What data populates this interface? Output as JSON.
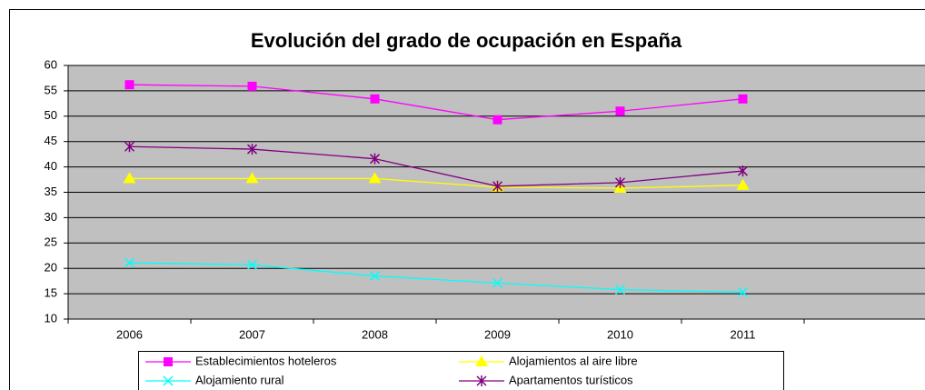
{
  "chart_data": {
    "type": "line",
    "title": "Evolución del grado de ocupación en España",
    "categories": [
      "2006",
      "2007",
      "2008",
      "2009",
      "2010",
      "2011",
      null
    ],
    "series": [
      {
        "name": "Establecimientos hoteleros",
        "color": "#ff00ff",
        "marker": "square",
        "values": [
          56.2,
          55.9,
          53.4,
          49.3,
          51,
          53.4,
          null
        ]
      },
      {
        "name": "Alojamientos al aire libre",
        "color": "#ffff00",
        "marker": "triangle",
        "values": [
          37.7,
          37.7,
          37.7,
          36,
          35.8,
          36.4,
          null
        ]
      },
      {
        "name": "Alojamiento rural",
        "color": "#00ffff",
        "marker": "x",
        "values": [
          21.1,
          20.7,
          18.5,
          17.1,
          15.8,
          15.3,
          null
        ]
      },
      {
        "name": "Apartamentos turísticos",
        "color": "#800080",
        "marker": "asterisk",
        "values": [
          44,
          43.5,
          41.6,
          36.2,
          36.9,
          39.2,
          null
        ]
      }
    ],
    "ylim": [
      10,
      60
    ],
    "yticks": [
      10,
      15,
      20,
      25,
      30,
      35,
      40,
      45,
      50,
      55,
      60
    ],
    "grid": true
  }
}
